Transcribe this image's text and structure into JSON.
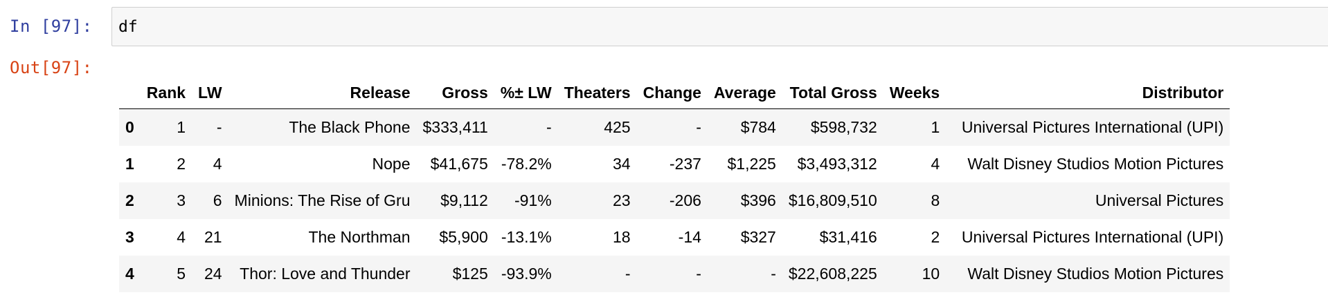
{
  "notebook": {
    "input_prompt": "In [97]:",
    "output_prompt": "Out[97]:",
    "code": "df"
  },
  "table": {
    "columns": [
      "",
      "Rank",
      "LW",
      "Release",
      "Gross",
      "%± LW",
      "Theaters",
      "Change",
      "Average",
      "Total Gross",
      "Weeks",
      "Distributor"
    ],
    "rows": [
      [
        "0",
        "1",
        "-",
        "The Black Phone",
        "$333,411",
        "-",
        "425",
        "-",
        "$784",
        "$598,732",
        "1",
        "Universal Pictures International (UPI)"
      ],
      [
        "1",
        "2",
        "4",
        "Nope",
        "$41,675",
        "-78.2%",
        "34",
        "-237",
        "$1,225",
        "$3,493,312",
        "4",
        "Walt Disney Studios Motion Pictures"
      ],
      [
        "2",
        "3",
        "6",
        "Minions: The Rise of Gru",
        "$9,112",
        "-91%",
        "23",
        "-206",
        "$396",
        "$16,809,510",
        "8",
        "Universal Pictures"
      ],
      [
        "3",
        "4",
        "21",
        "The Northman",
        "$5,900",
        "-13.1%",
        "18",
        "-14",
        "$327",
        "$31,416",
        "2",
        "Universal Pictures International (UPI)"
      ],
      [
        "4",
        "5",
        "24",
        "Thor: Love and Thunder",
        "$125",
        "-93.9%",
        "-",
        "-",
        "-",
        "$22,608,225",
        "10",
        "Walt Disney Studios Motion Pictures"
      ]
    ]
  },
  "colors": {
    "input_prompt": "#303f9f",
    "output_prompt": "#d84315",
    "input_background": "#f7f7f7",
    "row_stripe": "#f5f5f5"
  }
}
